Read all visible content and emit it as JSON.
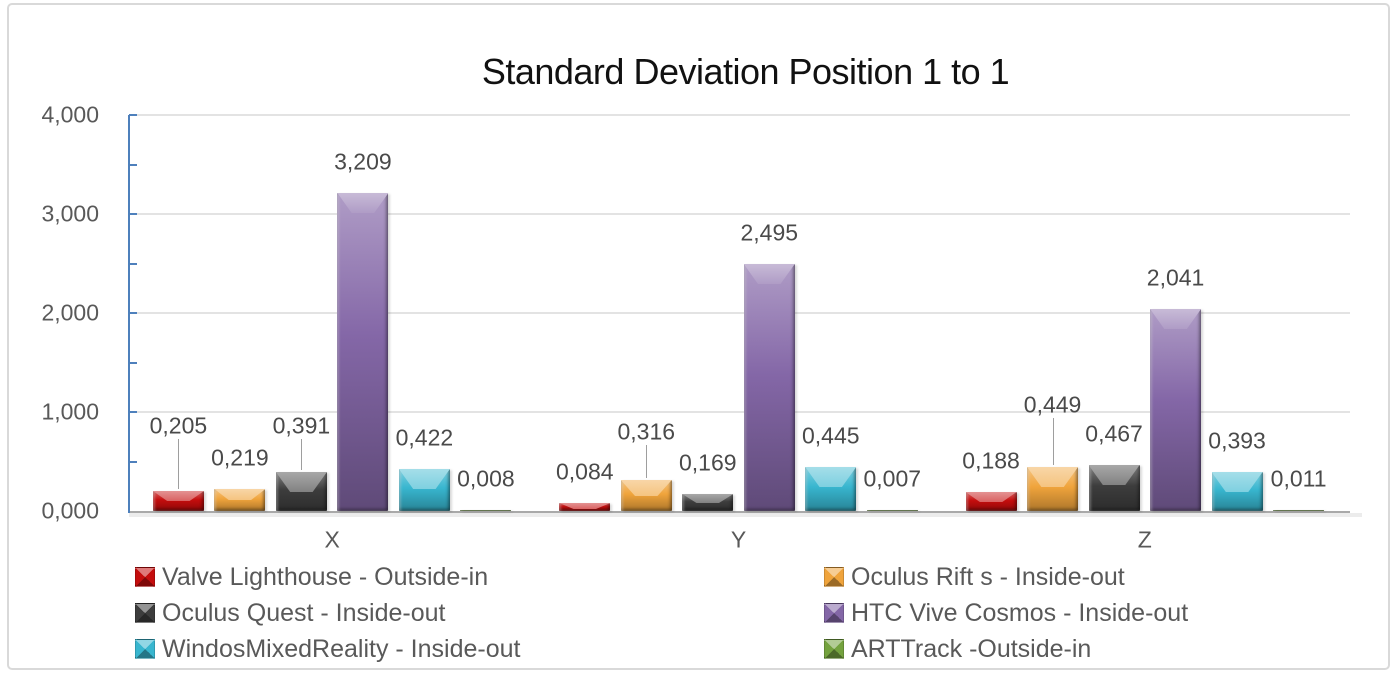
{
  "chart_data": {
    "type": "bar",
    "title": "Standard Deviation Position 1 to 1",
    "categories": [
      "X",
      "Y",
      "Z"
    ],
    "series": [
      {
        "name": "Valve Lighthouse - Outside-in",
        "color": "#c40d0d",
        "values": [
          0.205,
          0.084,
          0.188
        ],
        "labels": [
          "0,205",
          "0,084",
          "0,188"
        ]
      },
      {
        "name": "Oculus Rift s - Inside-out",
        "color": "#f0a43c",
        "values": [
          0.219,
          0.316,
          0.449
        ],
        "labels": [
          "0,219",
          "0,316",
          "0,449"
        ]
      },
      {
        "name": "Oculus Quest - Inside-out",
        "color": "#3d3d3d",
        "values": [
          0.391,
          0.169,
          0.467
        ],
        "labels": [
          "0,391",
          "0,169",
          "0,467"
        ]
      },
      {
        "name": "HTC Vive Cosmos - Inside-out",
        "color": "#8467a7",
        "values": [
          3.209,
          2.495,
          2.041
        ],
        "labels": [
          "3,209",
          "2,495",
          "2,041"
        ]
      },
      {
        "name": "WindosMixedReality - Inside-out",
        "color": "#38b6cf",
        "values": [
          0.422,
          0.445,
          0.393
        ],
        "labels": [
          "0,422",
          "0,445",
          "0,393"
        ]
      },
      {
        "name": "ARTTrack -Outside-in",
        "color": "#74a23e",
        "values": [
          0.008,
          0.007,
          0.011
        ],
        "labels": [
          "0,008",
          "0,007",
          "0,011"
        ]
      }
    ],
    "y_axis": {
      "min": 0,
      "max": 4,
      "major_step": 1,
      "minor_tick_step": 0.5,
      "tick_labels": [
        "0,000",
        "1,000",
        "2,000",
        "3,000",
        "4,000"
      ]
    },
    "grid": true,
    "legend_position": "bottom-two-columns",
    "colors": {
      "axis_line": "#4e80bc",
      "gridline": "#e3e3e3",
      "axis_text": "#595959",
      "data_label_text": "#4a4a4a",
      "title_text": "#111111",
      "frame_border": "#d9d9d9"
    }
  }
}
